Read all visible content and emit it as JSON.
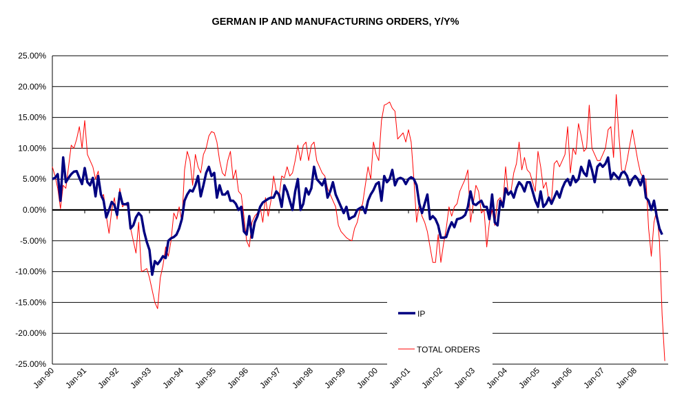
{
  "chart_data": {
    "type": "line",
    "title": "GERMAN IP AND MANUFACTURING ORDERS, Y/Y%",
    "xlabel": "",
    "ylabel": "",
    "ylim": [
      -25,
      25
    ],
    "y_ticks": [
      "25.00%",
      "20.00%",
      "15.00%",
      "10.00%",
      "5.00%",
      "0.00%",
      "-5.00%",
      "-10.00%",
      "-15.00%",
      "-20.00%",
      "-25.00%"
    ],
    "x_ticks": [
      "Jan-90",
      "Jan-91",
      "Jan-92",
      "Jan-93",
      "Jan-94",
      "Jan-95",
      "Jan-96",
      "Jan-97",
      "Jan-98",
      "Jan-99",
      "Jan-00",
      "Jan-01",
      "Jan-02",
      "Jan-03",
      "Jan-04",
      "Jan-05",
      "Jan-06",
      "Jan-07",
      "Jan-08"
    ],
    "frequency": "monthly",
    "grid": true,
    "legend": "bottom-right",
    "series": [
      {
        "name": "IP",
        "color": "#000080",
        "values_by_year": {
          "1990": [
            5.0,
            5.2,
            5.8,
            1.5,
            8.5,
            4.5,
            5.2,
            5.8,
            6.2,
            6.3,
            5.2,
            4.2
          ],
          "1991": [
            6.8,
            4.5,
            4.0,
            5.2,
            2.2,
            5.5,
            2.5,
            1.5,
            -1.2,
            0.0,
            1.3,
            0.8
          ],
          "1992": [
            -0.8,
            2.8,
            1.0,
            0.9,
            1.1,
            -3.0,
            -2.5,
            -1.2,
            -0.5,
            -1.0,
            -3.5,
            -5.2
          ],
          "1993": [
            -6.5,
            -10.5,
            -8.3,
            -8.8,
            -8.2,
            -7.5,
            -7.8,
            -5.0,
            -4.6,
            -4.4,
            -4.0,
            -3.0
          ],
          "1994": [
            -1.5,
            1.5,
            2.5,
            3.2,
            3.0,
            4.0,
            5.5,
            2.2,
            4.0,
            6.0,
            7.0,
            5.5
          ],
          "1995": [
            6.0,
            2.0,
            4.0,
            2.5,
            2.5,
            3.0,
            1.5,
            1.5,
            1.0,
            0.0,
            0.5,
            -3.5
          ],
          "1996": [
            -4.0,
            -1.0,
            -4.5,
            -2.0,
            -1.0,
            0.5,
            1.2,
            1.5,
            1.8,
            2.0,
            2.0,
            3.0
          ],
          "1997": [
            2.5,
            0.5,
            4.0,
            3.0,
            1.5,
            0.0,
            3.0,
            5.0,
            0.0,
            1.0,
            3.5,
            2.5
          ],
          "1998": [
            3.5,
            7.0,
            5.0,
            4.5,
            4.0,
            5.0,
            2.0,
            3.0,
            4.5,
            2.5,
            1.5,
            0.5
          ],
          "1999": [
            -0.5,
            0.5,
            -1.5,
            -1.2,
            -1.0,
            0.0,
            0.3,
            0.5,
            -0.5,
            1.5,
            2.5,
            3.2
          ],
          "2000": [
            4.2,
            4.5,
            1.5,
            5.5,
            4.5,
            5.0,
            6.5,
            4.0,
            5.0,
            5.2,
            5.0,
            4.2
          ],
          "2001": [
            5.0,
            5.3,
            5.0,
            4.0,
            1.0,
            -0.5,
            1.0,
            2.5,
            -1.5,
            -1.0,
            -1.5,
            -2.5
          ],
          "2002": [
            -4.5,
            -4.5,
            -4.4,
            -3.0,
            -2.0,
            -2.8,
            -1.5,
            -1.4,
            -1.2,
            -0.8,
            0.5,
            3.0
          ],
          "2003": [
            1.0,
            0.8,
            1.2,
            1.5,
            0.5,
            0.5,
            -1.5,
            2.5,
            -2.0,
            -2.5,
            1.5,
            0.5
          ],
          "2004": [
            3.5,
            2.5,
            3.0,
            2.0,
            3.5,
            4.5,
            4.0,
            3.0,
            4.5,
            4.5,
            3.0,
            1.5
          ],
          "2005": [
            0.5,
            3.0,
            0.5,
            1.0,
            2.0,
            1.0,
            2.0,
            3.0,
            2.0,
            3.5,
            4.5,
            5.0
          ],
          "2006": [
            4.0,
            5.5,
            4.5,
            5.0,
            7.0,
            6.0,
            5.5,
            8.0,
            6.5,
            4.5,
            7.0,
            7.5
          ],
          "2007": [
            7.0,
            7.5,
            8.5,
            5.0,
            6.0,
            5.5,
            5.0,
            6.0,
            6.2,
            5.5,
            4.0,
            5.0
          ],
          "2008": [
            5.5,
            5.0,
            4.0,
            5.5,
            2.0,
            1.5,
            0.0,
            1.5,
            -1.0,
            -3.0,
            -4.0
          ]
        }
      },
      {
        "name": "TOTAL ORDERS",
        "color": "#FF0000",
        "values_by_year": {
          "1990": [
            7.0,
            5.5,
            3.5,
            0.2,
            4.0,
            3.5,
            7.0,
            10.5,
            10.0,
            11.5,
            13.5,
            10.0
          ],
          "1991": [
            14.5,
            9.0,
            8.0,
            7.0,
            5.0,
            6.3,
            2.0,
            2.5,
            -1.0,
            -3.8,
            0.0,
            2.0
          ],
          "1992": [
            -1.5,
            3.5,
            0.5,
            1.0,
            0.5,
            -3.0,
            -5.0,
            -7.0,
            -2.0,
            -10.0,
            -9.8,
            -9.5
          ],
          "1993": [
            -11.0,
            -13.0,
            -15.0,
            -16.0,
            -11.0,
            -9.0,
            -6.0,
            -7.5,
            -5.0,
            -0.5,
            -1.5,
            0.5
          ],
          "1994": [
            -2.0,
            6.5,
            9.5,
            8.0,
            4.0,
            9.0,
            7.0,
            6.0,
            9.0,
            10.0,
            12.0,
            12.7
          ],
          "1995": [
            12.5,
            11.0,
            8.0,
            6.0,
            5.5,
            8.0,
            9.5,
            5.0,
            6.5,
            3.0,
            2.5,
            -1.0
          ],
          "1996": [
            -5.0,
            -6.0,
            -2.0,
            -1.0,
            -0.5,
            0.5,
            -2.0,
            2.0,
            -1.0,
            1.5,
            5.5,
            3.0
          ],
          "1997": [
            2.0,
            5.5,
            5.2,
            7.0,
            5.5,
            6.0,
            8.0,
            10.5,
            8.0,
            10.5,
            11.0,
            8.0
          ],
          "1998": [
            10.5,
            11.0,
            8.0,
            7.0,
            6.0,
            5.5,
            3.5,
            2.5,
            1.5,
            0.5,
            -2.5,
            -3.5
          ],
          "1999": [
            -4.0,
            -4.5,
            -4.8,
            -5.0,
            -3.0,
            -2.0,
            0.0,
            1.0,
            4.0,
            7.0,
            5.0,
            11.0
          ],
          "2000": [
            9.0,
            8.0,
            14.5,
            17.0,
            17.2,
            17.5,
            16.5,
            16.0,
            11.5,
            12.0,
            12.5,
            11.0
          ],
          "2001": [
            13.0,
            11.0,
            5.0,
            -2.0,
            1.0,
            -1.0,
            -2.0,
            -3.5,
            -6.0,
            -8.5,
            -8.5,
            -4.0
          ],
          "2002": [
            -8.5,
            -5.5,
            -3.0,
            0.5,
            -1.0,
            0.5,
            1.0,
            3.0,
            4.0,
            5.0,
            6.5,
            -2.0
          ],
          "2003": [
            1.0,
            4.0,
            3.0,
            -0.5,
            0.0,
            -6.0,
            -2.0,
            0.0,
            -2.5,
            1.5,
            2.0,
            1.0
          ],
          "2004": [
            7.0,
            2.5,
            3.0,
            6.0,
            7.5,
            11.0,
            6.5,
            8.5,
            6.5,
            6.0,
            4.5,
            3.0
          ],
          "2005": [
            9.5,
            7.0,
            3.5,
            4.5,
            1.5,
            1.5,
            7.5,
            8.0,
            7.0,
            8.0,
            9.0,
            13.5
          ],
          "2006": [
            6.0,
            10.0,
            9.0,
            14.0,
            12.0,
            9.5,
            10.0,
            17.0,
            10.0,
            9.0,
            8.0,
            8.0
          ],
          "2007": [
            9.0,
            10.0,
            13.0,
            13.5,
            8.5,
            18.7,
            12.0,
            6.5,
            6.0,
            8.0,
            10.5,
            13.0
          ],
          "2008": [
            10.5,
            8.0,
            6.0,
            5.2,
            5.0,
            -3.0,
            -7.5,
            -2.0,
            0.0,
            -5.0,
            -17.0,
            -24.5
          ]
        }
      }
    ]
  }
}
